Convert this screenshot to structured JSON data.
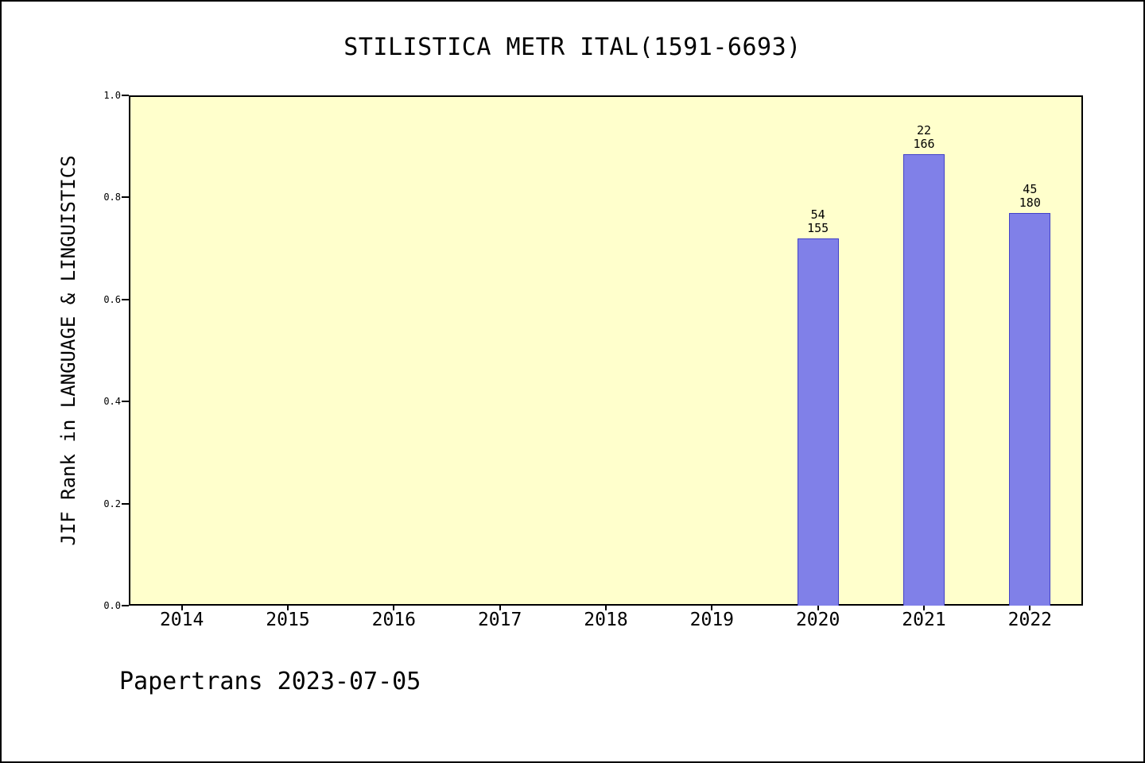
{
  "page": {
    "footer": "Papertrans 2023-07-05"
  },
  "chart_data": {
    "type": "bar",
    "title": "STILISTICA METR ITAL(1591-6693)",
    "xlabel": "",
    "ylabel": "JIF Rank in LANGUAGE & LINGUISTICS",
    "categories": [
      "2014",
      "2015",
      "2016",
      "2017",
      "2018",
      "2019",
      "2020",
      "2021",
      "2022"
    ],
    "values": [
      null,
      null,
      null,
      null,
      null,
      null,
      0.72,
      0.885,
      0.77
    ],
    "bars": [
      {
        "category": "2020",
        "value": 0.72,
        "rank": "54",
        "total": "155"
      },
      {
        "category": "2021",
        "value": 0.885,
        "rank": "22",
        "total": "166"
      },
      {
        "category": "2022",
        "value": 0.77,
        "rank": "45",
        "total": "180"
      }
    ],
    "ylim": [
      0.0,
      1.0
    ],
    "yticks": [
      "0.0",
      "0.2",
      "0.4",
      "0.6",
      "0.8",
      "1.0"
    ],
    "grid": false,
    "legend": null,
    "colors": {
      "bar_fill": "#8080e8",
      "bar_edge": "#4343c8",
      "plot_background": "#ffffcc",
      "page_background": "#ffffff",
      "text": "#000000"
    }
  }
}
